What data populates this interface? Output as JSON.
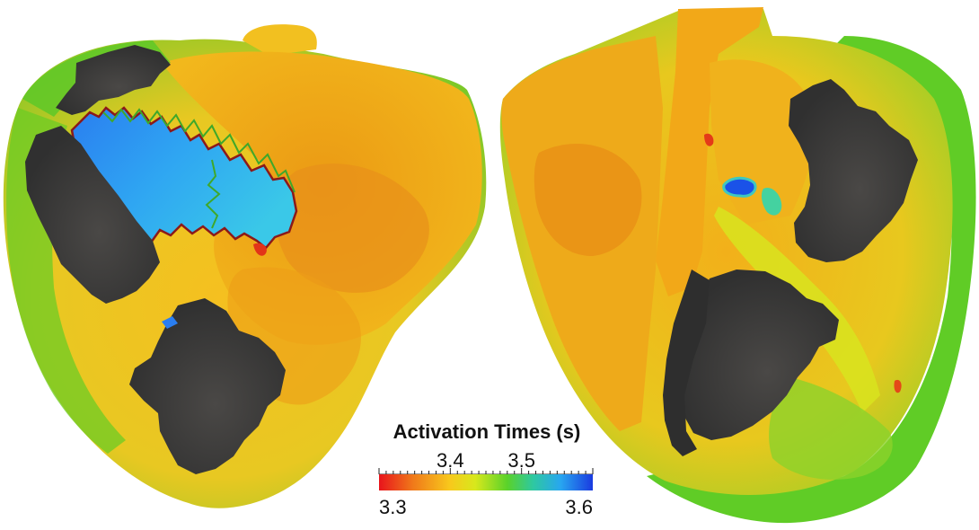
{
  "legend": {
    "title": "Activation Times (s)",
    "min": 3.3,
    "max": 3.6,
    "labels": [
      {
        "value": 3.3,
        "text": "3.3",
        "row": "bottom",
        "anchor": "start"
      },
      {
        "value": 3.4,
        "text": "3.4",
        "row": "top",
        "anchor": "middle"
      },
      {
        "value": 3.5,
        "text": "3.5",
        "row": "top",
        "anchor": "middle"
      },
      {
        "value": 3.6,
        "text": "3.6",
        "row": "bottom",
        "anchor": "end"
      }
    ],
    "colormap": [
      "#e8141c",
      "#f07a1a",
      "#f8c81c",
      "#d8e81c",
      "#5ad22a",
      "#2ec8a0",
      "#28a6f0",
      "#1a3ae0"
    ]
  },
  "colors": {
    "scar": "#3a3a3a",
    "orange": "#f2a818",
    "yellow": "#f4c41c",
    "green": "#62cc22",
    "blue": "#2f8ef0",
    "outline": "#8b1a1a"
  }
}
